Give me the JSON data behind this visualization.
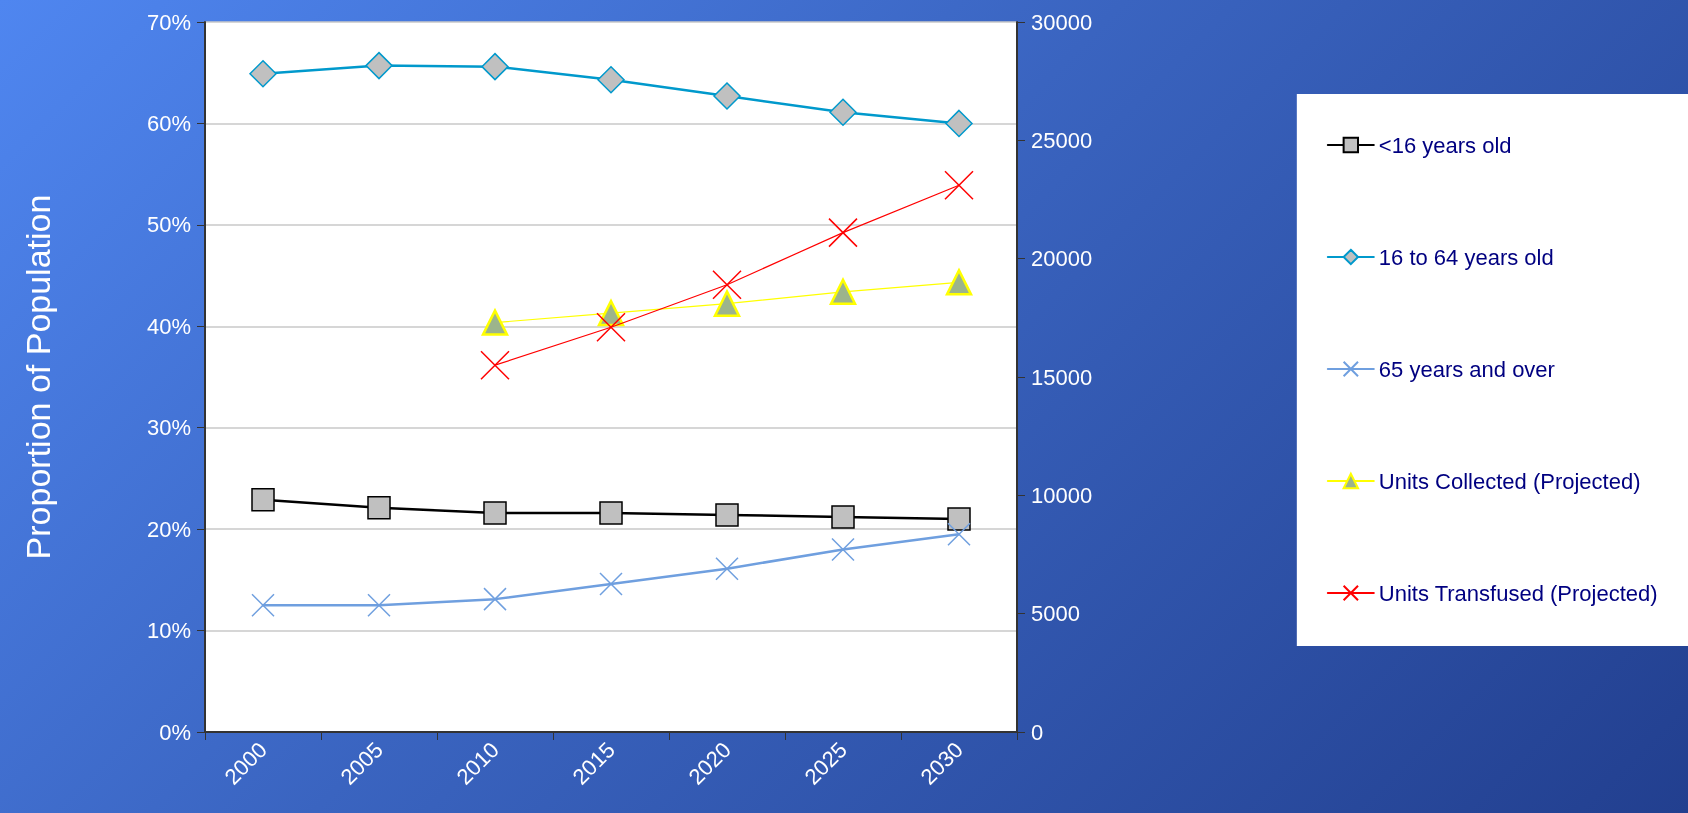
{
  "chart_data": {
    "type": "line",
    "ylabel": "Proportion of Population",
    "categories": [
      "2000",
      "2005",
      "2010",
      "2015",
      "2020",
      "2025",
      "2030"
    ],
    "series": [
      {
        "name": "<16 years old",
        "color": "#000000",
        "marker": "square",
        "values": [
          22.9,
          22.1,
          21.6,
          21.6,
          21.4,
          21.2,
          21.0
        ]
      },
      {
        "name": "16 to 64 years old",
        "color": "#0099cc",
        "marker": "diamond",
        "values": [
          64.9,
          65.7,
          65.6,
          64.3,
          62.7,
          61.1,
          60.0
        ]
      },
      {
        "name": "65 years and over",
        "color": "#6f9fdf",
        "marker": "cross",
        "values": [
          12.5,
          12.5,
          13.1,
          14.6,
          16.1,
          18.0,
          19.5
        ]
      },
      {
        "name": "Units Collected (Projected)",
        "color": "#ffff00",
        "marker": "triangle",
        "axis": "y2",
        "values": [
          null,
          null,
          17300,
          17700,
          18100,
          18600,
          19000
        ]
      },
      {
        "name": "Units Transfused (Projected)",
        "color": "#ff0000",
        "marker": "cross",
        "axis": "y2",
        "values": [
          null,
          null,
          15500,
          17100,
          18900,
          21100,
          23100
        ]
      }
    ],
    "ylim": [
      0,
      70
    ],
    "yticks": [
      {
        "value": 0,
        "label": "0%"
      },
      {
        "value": 10,
        "label": "10%"
      },
      {
        "value": 20,
        "label": "20%"
      },
      {
        "value": 30,
        "label": "30%"
      },
      {
        "value": 40,
        "label": "40%"
      },
      {
        "value": 50,
        "label": "50%"
      },
      {
        "value": 60,
        "label": "60%"
      },
      {
        "value": 70,
        "label": "70%"
      }
    ],
    "y2lim": [
      0,
      30000
    ],
    "y2ticks": [
      0,
      5000,
      10000,
      15000,
      20000,
      25000,
      30000
    ],
    "grid": "y",
    "legend": "right"
  }
}
